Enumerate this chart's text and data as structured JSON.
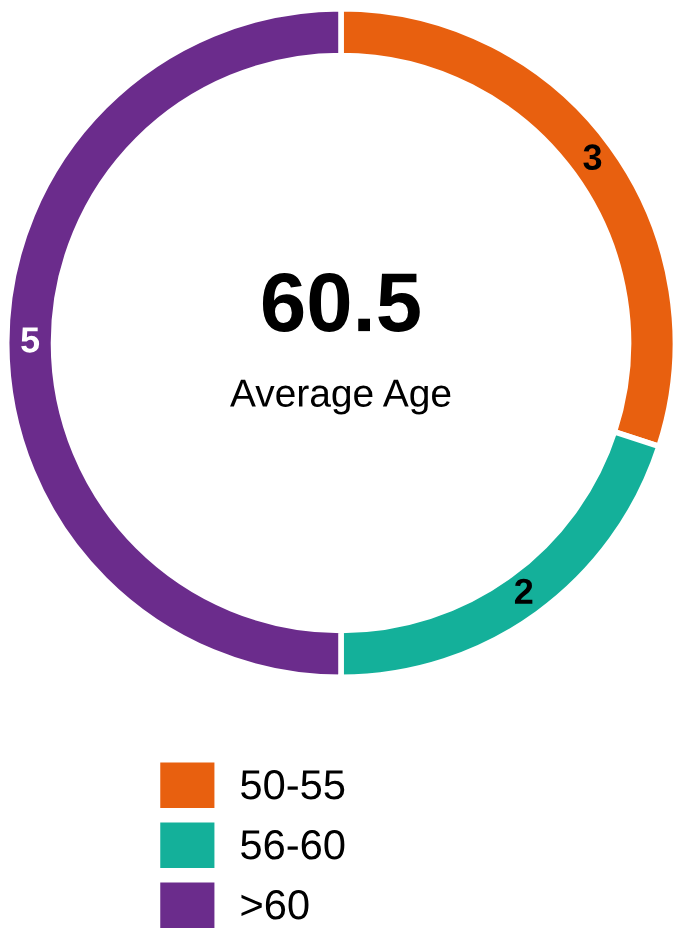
{
  "chart_data": {
    "type": "donut",
    "categories": [
      "50-55",
      "56-60",
      ">60"
    ],
    "values": [
      3,
      2,
      5
    ],
    "colors": [
      "#e8600f",
      "#14b09a",
      "#6b2c8c"
    ],
    "data_labels": true,
    "legend": "bottom",
    "annotations": [
      "60.5",
      "Average Age"
    ]
  }
}
